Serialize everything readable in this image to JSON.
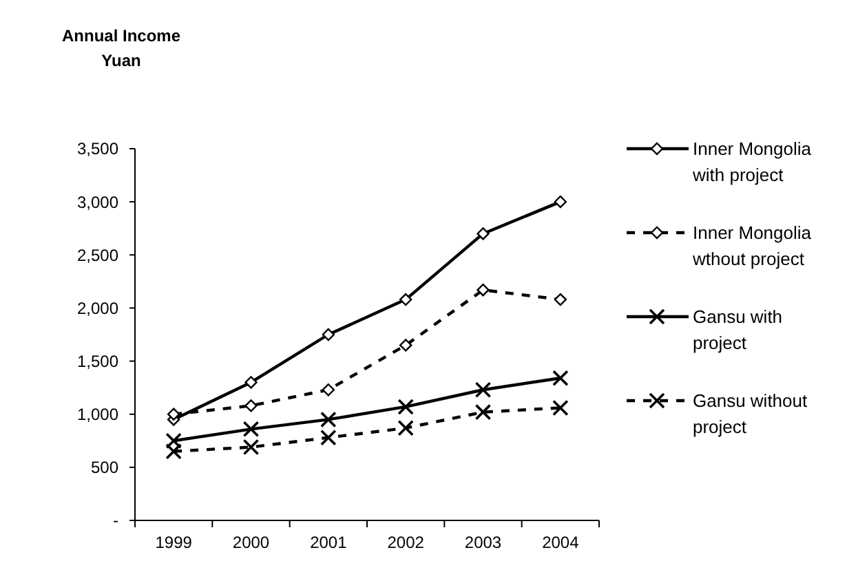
{
  "chart_data": {
    "type": "line",
    "ylabel": "Annual Income\nYuan",
    "categories": [
      "1999",
      "2000",
      "2001",
      "2002",
      "2003",
      "2004"
    ],
    "series": [
      {
        "name": "Inner Mongolia with project",
        "color": "#000000",
        "marker": "diamond",
        "line_style": "solid",
        "values": [
          950,
          1300,
          1750,
          2080,
          2700,
          3000
        ]
      },
      {
        "name": "Inner Mongolia wthout project",
        "color": "#000000",
        "marker": "diamond",
        "line_style": "dashed",
        "values": [
          1000,
          1080,
          1230,
          1650,
          2170,
          2080
        ]
      },
      {
        "name": "Gansu with project",
        "color": "#000000",
        "marker": "cross",
        "line_style": "solid",
        "values": [
          750,
          860,
          950,
          1070,
          1230,
          1340
        ]
      },
      {
        "name": "Gansu without project",
        "color": "#000000",
        "marker": "cross",
        "line_style": "dashed",
        "values": [
          650,
          690,
          780,
          870,
          1020,
          1060
        ]
      }
    ],
    "ylim": [
      0,
      3500
    ],
    "yticks": [
      {
        "value": 0,
        "label": "-"
      },
      {
        "value": 500,
        "label": "500"
      },
      {
        "value": 1000,
        "label": "1,000"
      },
      {
        "value": 1500,
        "label": "1,500"
      },
      {
        "value": 2000,
        "label": "2,000"
      },
      {
        "value": 2500,
        "label": "2,500"
      },
      {
        "value": 3000,
        "label": "3,000"
      },
      {
        "value": 3500,
        "label": "3,500"
      }
    ],
    "grid": false,
    "legend": "right"
  }
}
